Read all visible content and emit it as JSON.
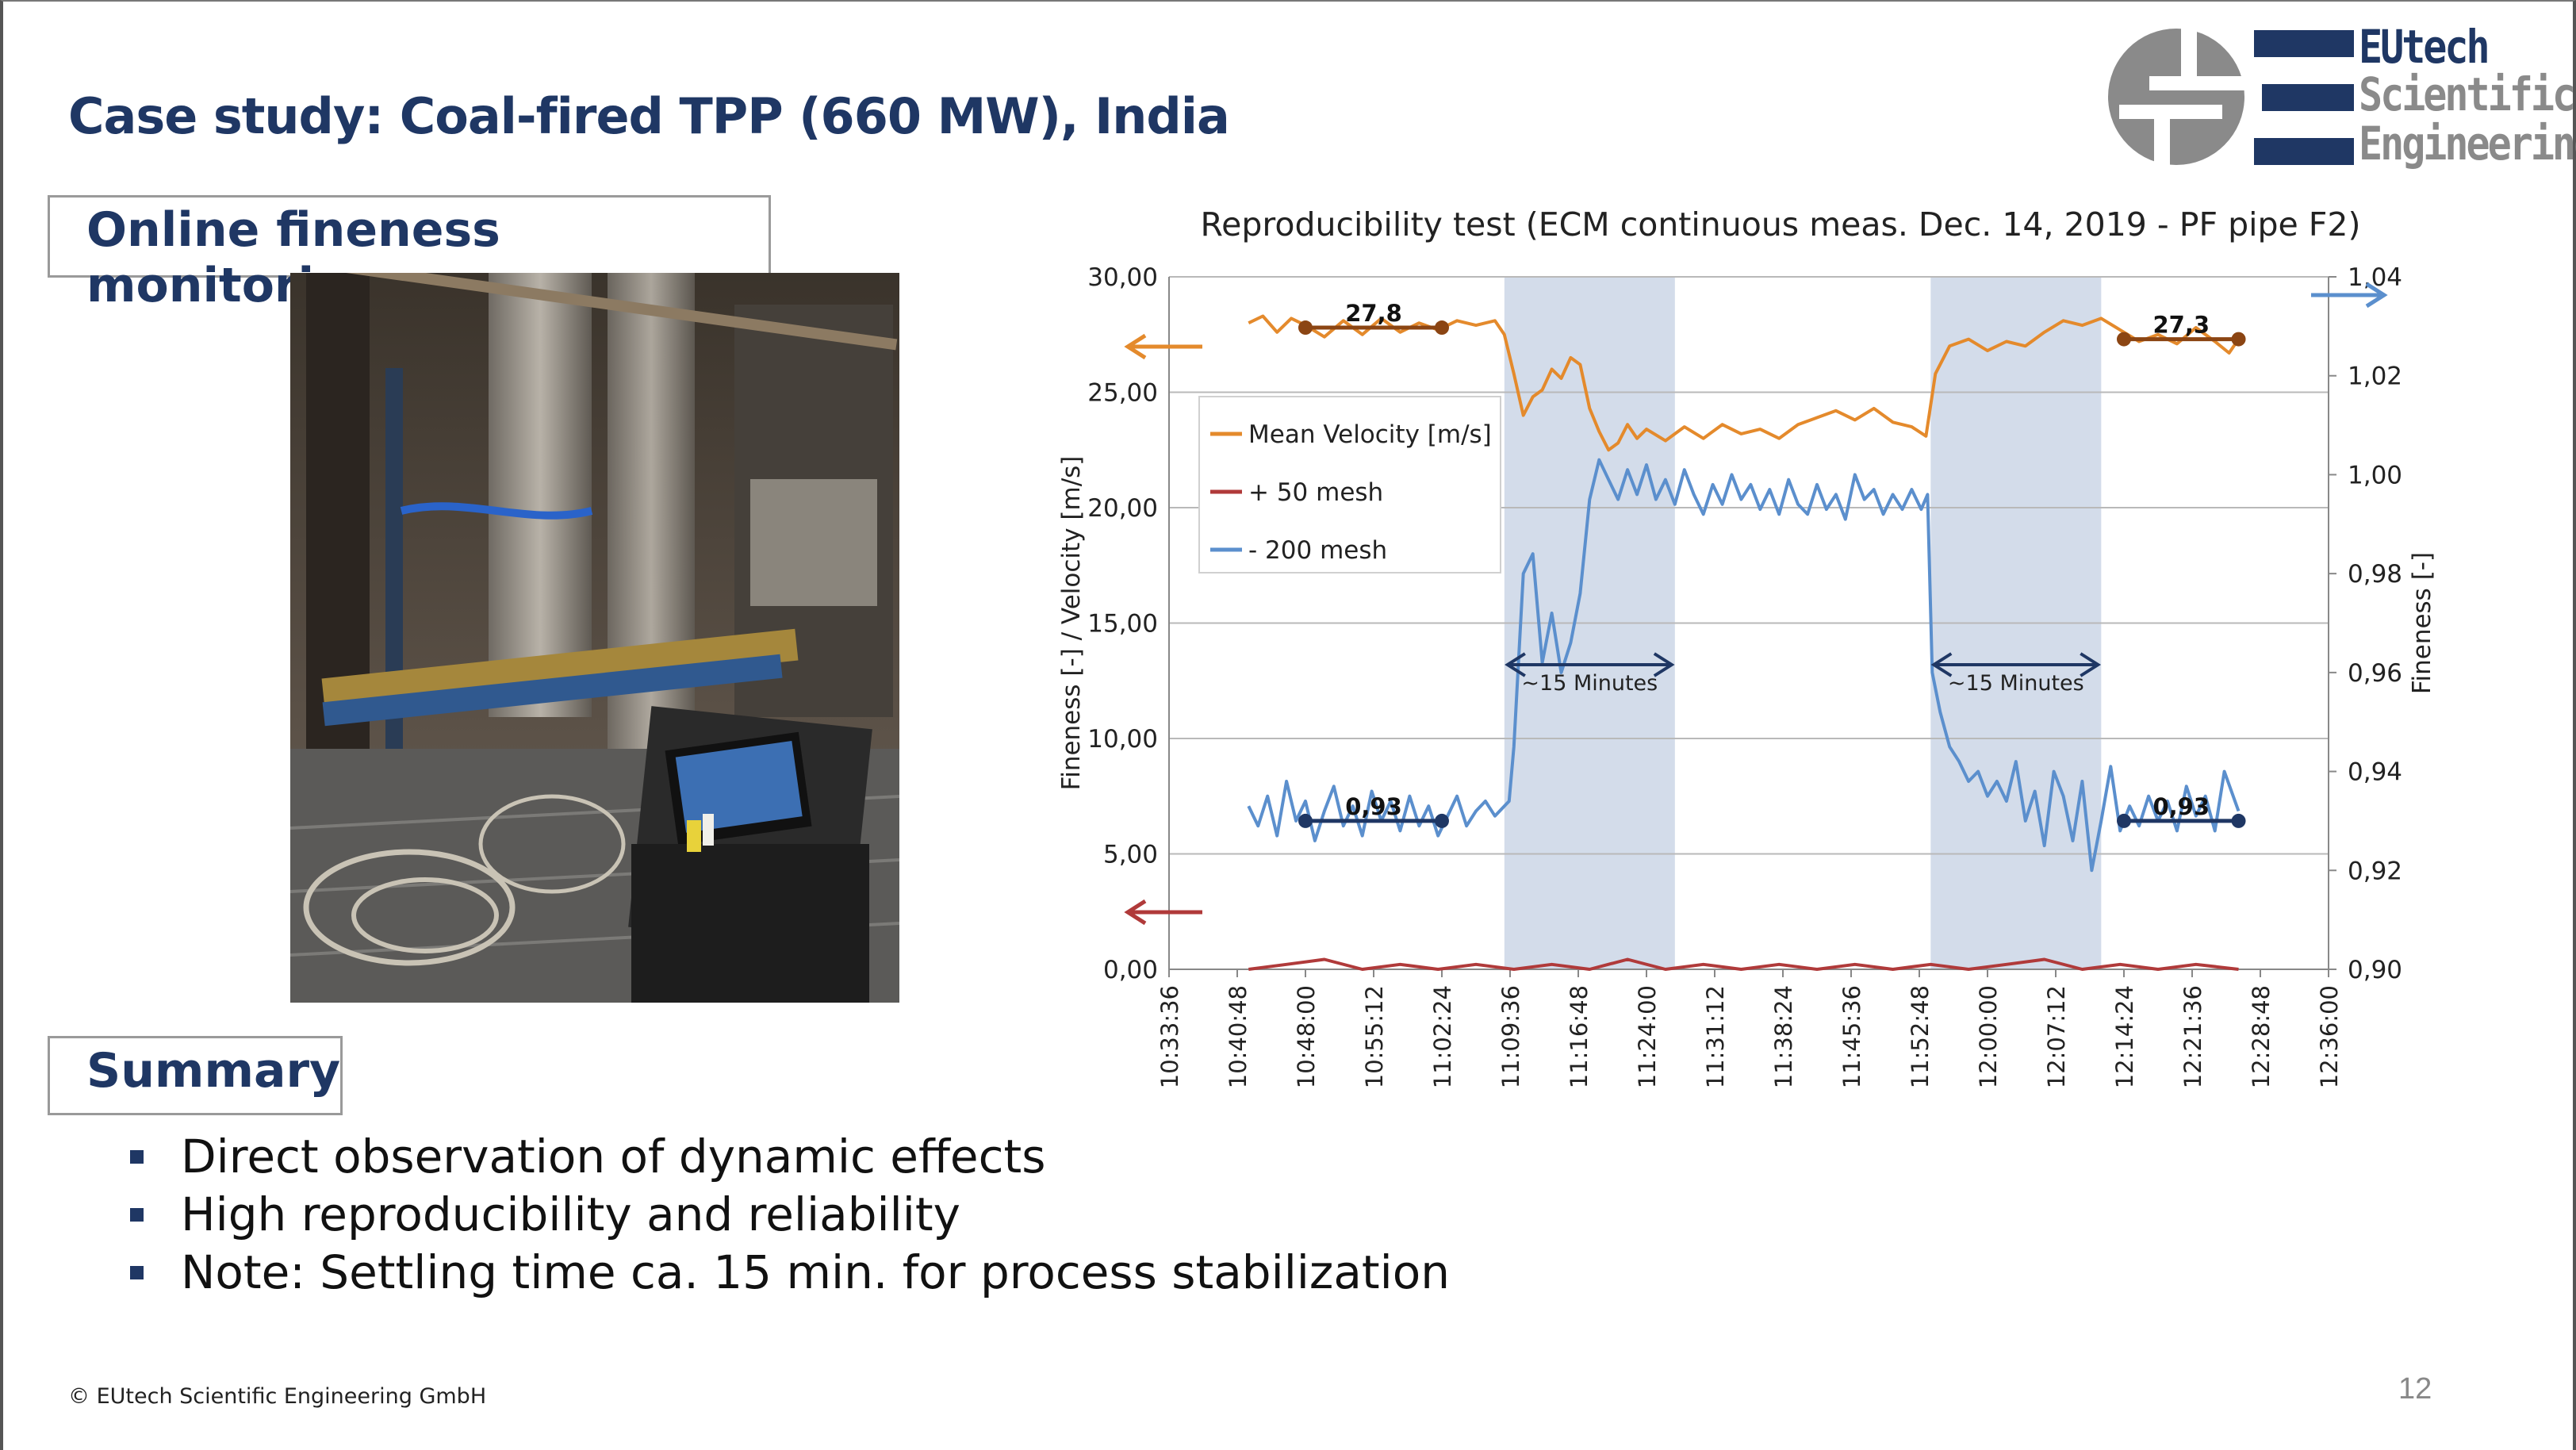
{
  "slide": {
    "title": "Case study: Coal-fired TPP (660 MW), India",
    "section_label": "Online fineness monitoring",
    "summary_label": "Summary",
    "bullets": [
      "Direct observation of dynamic effects",
      "High reproducibility and reliability",
      "Note: Settling time ca. 15 min. for process stabilization"
    ],
    "footer": "© EUtech Scientific Engineering GmbH",
    "page_number": "12",
    "logo": {
      "line1": "EUtech",
      "line2": "Scientific",
      "line3": "Engineering"
    }
  },
  "chart_data": {
    "type": "line",
    "title": "Reproducibility test (ECM continuous meas. Dec. 14, 2019 - PF pipe F2)",
    "ylabel": "Fineness [-] / Velocity [m/s]",
    "y2label": "Fineness [-]",
    "ylim": [
      0,
      30
    ],
    "y2lim": [
      0.9,
      1.04
    ],
    "y_ticks": [
      "0,00",
      "5,00",
      "10,00",
      "15,00",
      "20,00",
      "25,00",
      "30,00"
    ],
    "y2_ticks": [
      "0,90",
      "0,92",
      "0,94",
      "0,96",
      "0,98",
      "1,00",
      "1,02",
      "1,04"
    ],
    "x_ticks": [
      "10:33:36",
      "10:40:48",
      "10:48:00",
      "10:55:12",
      "11:02:24",
      "11:09:36",
      "11:16:48",
      "11:24:00",
      "11:31:12",
      "11:38:24",
      "11:45:36",
      "11:52:48",
      "12:00:00",
      "12:07:12",
      "12:14:24",
      "12:21:36",
      "12:28:48",
      "12:36:00"
    ],
    "grid": true,
    "legend_position": "top-left",
    "series": [
      {
        "name": "Mean Velocity [m/s]",
        "axis": "left",
        "color": "#e48a2c",
        "points": [
          [
            "10:42:00",
            28.0
          ],
          [
            "10:43:30",
            28.3
          ],
          [
            "10:45:00",
            27.6
          ],
          [
            "10:46:30",
            28.2
          ],
          [
            "10:48:00",
            27.9
          ],
          [
            "10:50:00",
            27.4
          ],
          [
            "10:52:00",
            28.1
          ],
          [
            "10:54:00",
            27.5
          ],
          [
            "10:56:00",
            28.2
          ],
          [
            "10:58:00",
            27.6
          ],
          [
            "11:00:00",
            28.0
          ],
          [
            "11:02:00",
            27.7
          ],
          [
            "11:04:00",
            28.1
          ],
          [
            "11:06:00",
            27.9
          ],
          [
            "11:08:00",
            28.1
          ],
          [
            "11:09:00",
            27.5
          ],
          [
            "11:10:00",
            25.8
          ],
          [
            "11:11:00",
            24.0
          ],
          [
            "11:12:00",
            24.8
          ],
          [
            "11:13:00",
            25.1
          ],
          [
            "11:14:00",
            26.0
          ],
          [
            "11:15:00",
            25.6
          ],
          [
            "11:16:00",
            26.5
          ],
          [
            "11:17:00",
            26.2
          ],
          [
            "11:18:00",
            24.3
          ],
          [
            "11:19:00",
            23.3
          ],
          [
            "11:20:00",
            22.5
          ],
          [
            "11:21:00",
            22.8
          ],
          [
            "11:22:00",
            23.6
          ],
          [
            "11:23:00",
            23.0
          ],
          [
            "11:24:00",
            23.4
          ],
          [
            "11:26:00",
            22.9
          ],
          [
            "11:28:00",
            23.5
          ],
          [
            "11:30:00",
            23.0
          ],
          [
            "11:32:00",
            23.6
          ],
          [
            "11:34:00",
            23.2
          ],
          [
            "11:36:00",
            23.4
          ],
          [
            "11:38:00",
            23.0
          ],
          [
            "11:40:00",
            23.6
          ],
          [
            "11:42:00",
            23.9
          ],
          [
            "11:44:00",
            24.2
          ],
          [
            "11:46:00",
            23.8
          ],
          [
            "11:48:00",
            24.3
          ],
          [
            "11:50:00",
            23.7
          ],
          [
            "11:52:00",
            23.5
          ],
          [
            "11:53:30",
            23.1
          ],
          [
            "11:54:30",
            25.8
          ],
          [
            "11:56:00",
            27.0
          ],
          [
            "11:58:00",
            27.3
          ],
          [
            "12:00:00",
            26.8
          ],
          [
            "12:02:00",
            27.2
          ],
          [
            "12:04:00",
            27.0
          ],
          [
            "12:06:00",
            27.6
          ],
          [
            "12:08:00",
            28.1
          ],
          [
            "12:10:00",
            27.9
          ],
          [
            "12:12:00",
            28.2
          ],
          [
            "12:14:00",
            27.7
          ],
          [
            "12:16:00",
            27.2
          ],
          [
            "12:18:00",
            27.5
          ],
          [
            "12:20:00",
            27.1
          ],
          [
            "12:22:00",
            27.8
          ],
          [
            "12:24:00",
            27.2
          ],
          [
            "12:25:30",
            26.7
          ],
          [
            "12:26:30",
            27.3
          ]
        ]
      },
      {
        "name": "+ 50 mesh",
        "axis": "right",
        "color": "#b03a3a",
        "points": [
          [
            "10:42:00",
            0.9
          ],
          [
            "10:46:00",
            0.901
          ],
          [
            "10:50:00",
            0.902
          ],
          [
            "10:54:00",
            0.9
          ],
          [
            "10:58:00",
            0.901
          ],
          [
            "11:02:00",
            0.9
          ],
          [
            "11:06:00",
            0.901
          ],
          [
            "11:10:00",
            0.9
          ],
          [
            "11:14:00",
            0.901
          ],
          [
            "11:18:00",
            0.9
          ],
          [
            "11:22:00",
            0.902
          ],
          [
            "11:26:00",
            0.9
          ],
          [
            "11:30:00",
            0.901
          ],
          [
            "11:34:00",
            0.9
          ],
          [
            "11:38:00",
            0.901
          ],
          [
            "11:42:00",
            0.9
          ],
          [
            "11:46:00",
            0.901
          ],
          [
            "11:50:00",
            0.9
          ],
          [
            "11:54:00",
            0.901
          ],
          [
            "11:58:00",
            0.9
          ],
          [
            "12:02:00",
            0.901
          ],
          [
            "12:06:00",
            0.902
          ],
          [
            "12:10:00",
            0.9
          ],
          [
            "12:14:00",
            0.901
          ],
          [
            "12:18:00",
            0.9
          ],
          [
            "12:22:00",
            0.901
          ],
          [
            "12:26:30",
            0.9
          ]
        ]
      },
      {
        "name": "- 200 mesh",
        "axis": "right",
        "color": "#5b8fcd",
        "points": [
          [
            "10:42:00",
            0.933
          ],
          [
            "10:43:00",
            0.929
          ],
          [
            "10:44:00",
            0.935
          ],
          [
            "10:45:00",
            0.927
          ],
          [
            "10:46:00",
            0.938
          ],
          [
            "10:47:00",
            0.93
          ],
          [
            "10:48:00",
            0.934
          ],
          [
            "10:49:00",
            0.926
          ],
          [
            "10:50:00",
            0.932
          ],
          [
            "10:51:00",
            0.937
          ],
          [
            "10:52:00",
            0.929
          ],
          [
            "10:53:00",
            0.933
          ],
          [
            "10:54:00",
            0.927
          ],
          [
            "10:55:00",
            0.936
          ],
          [
            "10:56:00",
            0.93
          ],
          [
            "10:57:00",
            0.934
          ],
          [
            "10:58:00",
            0.928
          ],
          [
            "10:59:00",
            0.935
          ],
          [
            "11:00:00",
            0.929
          ],
          [
            "11:01:00",
            0.933
          ],
          [
            "11:02:00",
            0.927
          ],
          [
            "11:03:00",
            0.931
          ],
          [
            "11:04:00",
            0.935
          ],
          [
            "11:05:00",
            0.929
          ],
          [
            "11:06:00",
            0.932
          ],
          [
            "11:07:00",
            0.934
          ],
          [
            "11:08:00",
            0.931
          ],
          [
            "11:09:30",
            0.934
          ],
          [
            "11:10:00",
            0.945
          ],
          [
            "11:11:00",
            0.98
          ],
          [
            "11:12:00",
            0.984
          ],
          [
            "11:13:00",
            0.962
          ],
          [
            "11:14:00",
            0.972
          ],
          [
            "11:15:00",
            0.96
          ],
          [
            "11:16:00",
            0.966
          ],
          [
            "11:17:00",
            0.976
          ],
          [
            "11:18:00",
            0.995
          ],
          [
            "11:19:00",
            1.003
          ],
          [
            "11:20:00",
            0.999
          ],
          [
            "11:21:00",
            0.995
          ],
          [
            "11:22:00",
            1.001
          ],
          [
            "11:23:00",
            0.996
          ],
          [
            "11:24:00",
            1.002
          ],
          [
            "11:25:00",
            0.995
          ],
          [
            "11:26:00",
            0.999
          ],
          [
            "11:27:00",
            0.994
          ],
          [
            "11:28:00",
            1.001
          ],
          [
            "11:29:00",
            0.996
          ],
          [
            "11:30:00",
            0.992
          ],
          [
            "11:31:00",
            0.998
          ],
          [
            "11:32:00",
            0.994
          ],
          [
            "11:33:00",
            1.0
          ],
          [
            "11:34:00",
            0.995
          ],
          [
            "11:35:00",
            0.998
          ],
          [
            "11:36:00",
            0.993
          ],
          [
            "11:37:00",
            0.997
          ],
          [
            "11:38:00",
            0.992
          ],
          [
            "11:39:00",
            0.999
          ],
          [
            "11:40:00",
            0.994
          ],
          [
            "11:41:00",
            0.992
          ],
          [
            "11:42:00",
            0.998
          ],
          [
            "11:43:00",
            0.993
          ],
          [
            "11:44:00",
            0.996
          ],
          [
            "11:45:00",
            0.991
          ],
          [
            "11:46:00",
            1.0
          ],
          [
            "11:47:00",
            0.995
          ],
          [
            "11:48:00",
            0.997
          ],
          [
            "11:49:00",
            0.992
          ],
          [
            "11:50:00",
            0.996
          ],
          [
            "11:51:00",
            0.993
          ],
          [
            "11:52:00",
            0.997
          ],
          [
            "11:53:00",
            0.993
          ],
          [
            "11:53:40",
            0.996
          ],
          [
            "11:54:10",
            0.96
          ],
          [
            "11:55:00",
            0.952
          ],
          [
            "11:56:00",
            0.945
          ],
          [
            "11:57:00",
            0.942
          ],
          [
            "11:58:00",
            0.938
          ],
          [
            "11:59:00",
            0.94
          ],
          [
            "12:00:00",
            0.935
          ],
          [
            "12:01:00",
            0.938
          ],
          [
            "12:02:00",
            0.934
          ],
          [
            "12:03:00",
            0.942
          ],
          [
            "12:04:00",
            0.93
          ],
          [
            "12:05:00",
            0.936
          ],
          [
            "12:06:00",
            0.925
          ],
          [
            "12:07:00",
            0.94
          ],
          [
            "12:08:00",
            0.935
          ],
          [
            "12:09:00",
            0.926
          ],
          [
            "12:10:00",
            0.938
          ],
          [
            "12:11:00",
            0.92
          ],
          [
            "12:12:00",
            0.93
          ],
          [
            "12:13:00",
            0.941
          ],
          [
            "12:14:00",
            0.928
          ],
          [
            "12:15:00",
            0.933
          ],
          [
            "12:16:00",
            0.929
          ],
          [
            "12:17:00",
            0.935
          ],
          [
            "12:18:00",
            0.93
          ],
          [
            "12:19:00",
            0.934
          ],
          [
            "12:20:00",
            0.928
          ],
          [
            "12:21:00",
            0.937
          ],
          [
            "12:22:00",
            0.931
          ],
          [
            "12:23:00",
            0.935
          ],
          [
            "12:24:00",
            0.928
          ],
          [
            "12:25:00",
            0.94
          ],
          [
            "12:26:30",
            0.932
          ]
        ]
      }
    ],
    "reference_lines": [
      {
        "label": "27,8",
        "axis": "left",
        "value": 27.8,
        "from": "10:48:00",
        "to": "11:02:24"
      },
      {
        "label": "27,3",
        "axis": "left",
        "value": 27.3,
        "from": "12:14:24",
        "to": "12:26:30"
      },
      {
        "label": "0,93",
        "axis": "right",
        "value": 0.93,
        "from": "10:48:00",
        "to": "11:02:24"
      },
      {
        "label": "0,93",
        "axis": "right",
        "value": 0.93,
        "from": "12:14:24",
        "to": "12:26:30"
      }
    ],
    "shaded_regions": [
      {
        "from": "11:09:00",
        "to": "11:27:00",
        "label": "~15 Minutes"
      },
      {
        "from": "11:54:00",
        "to": "12:12:00",
        "label": "~15 Minutes"
      }
    ]
  }
}
